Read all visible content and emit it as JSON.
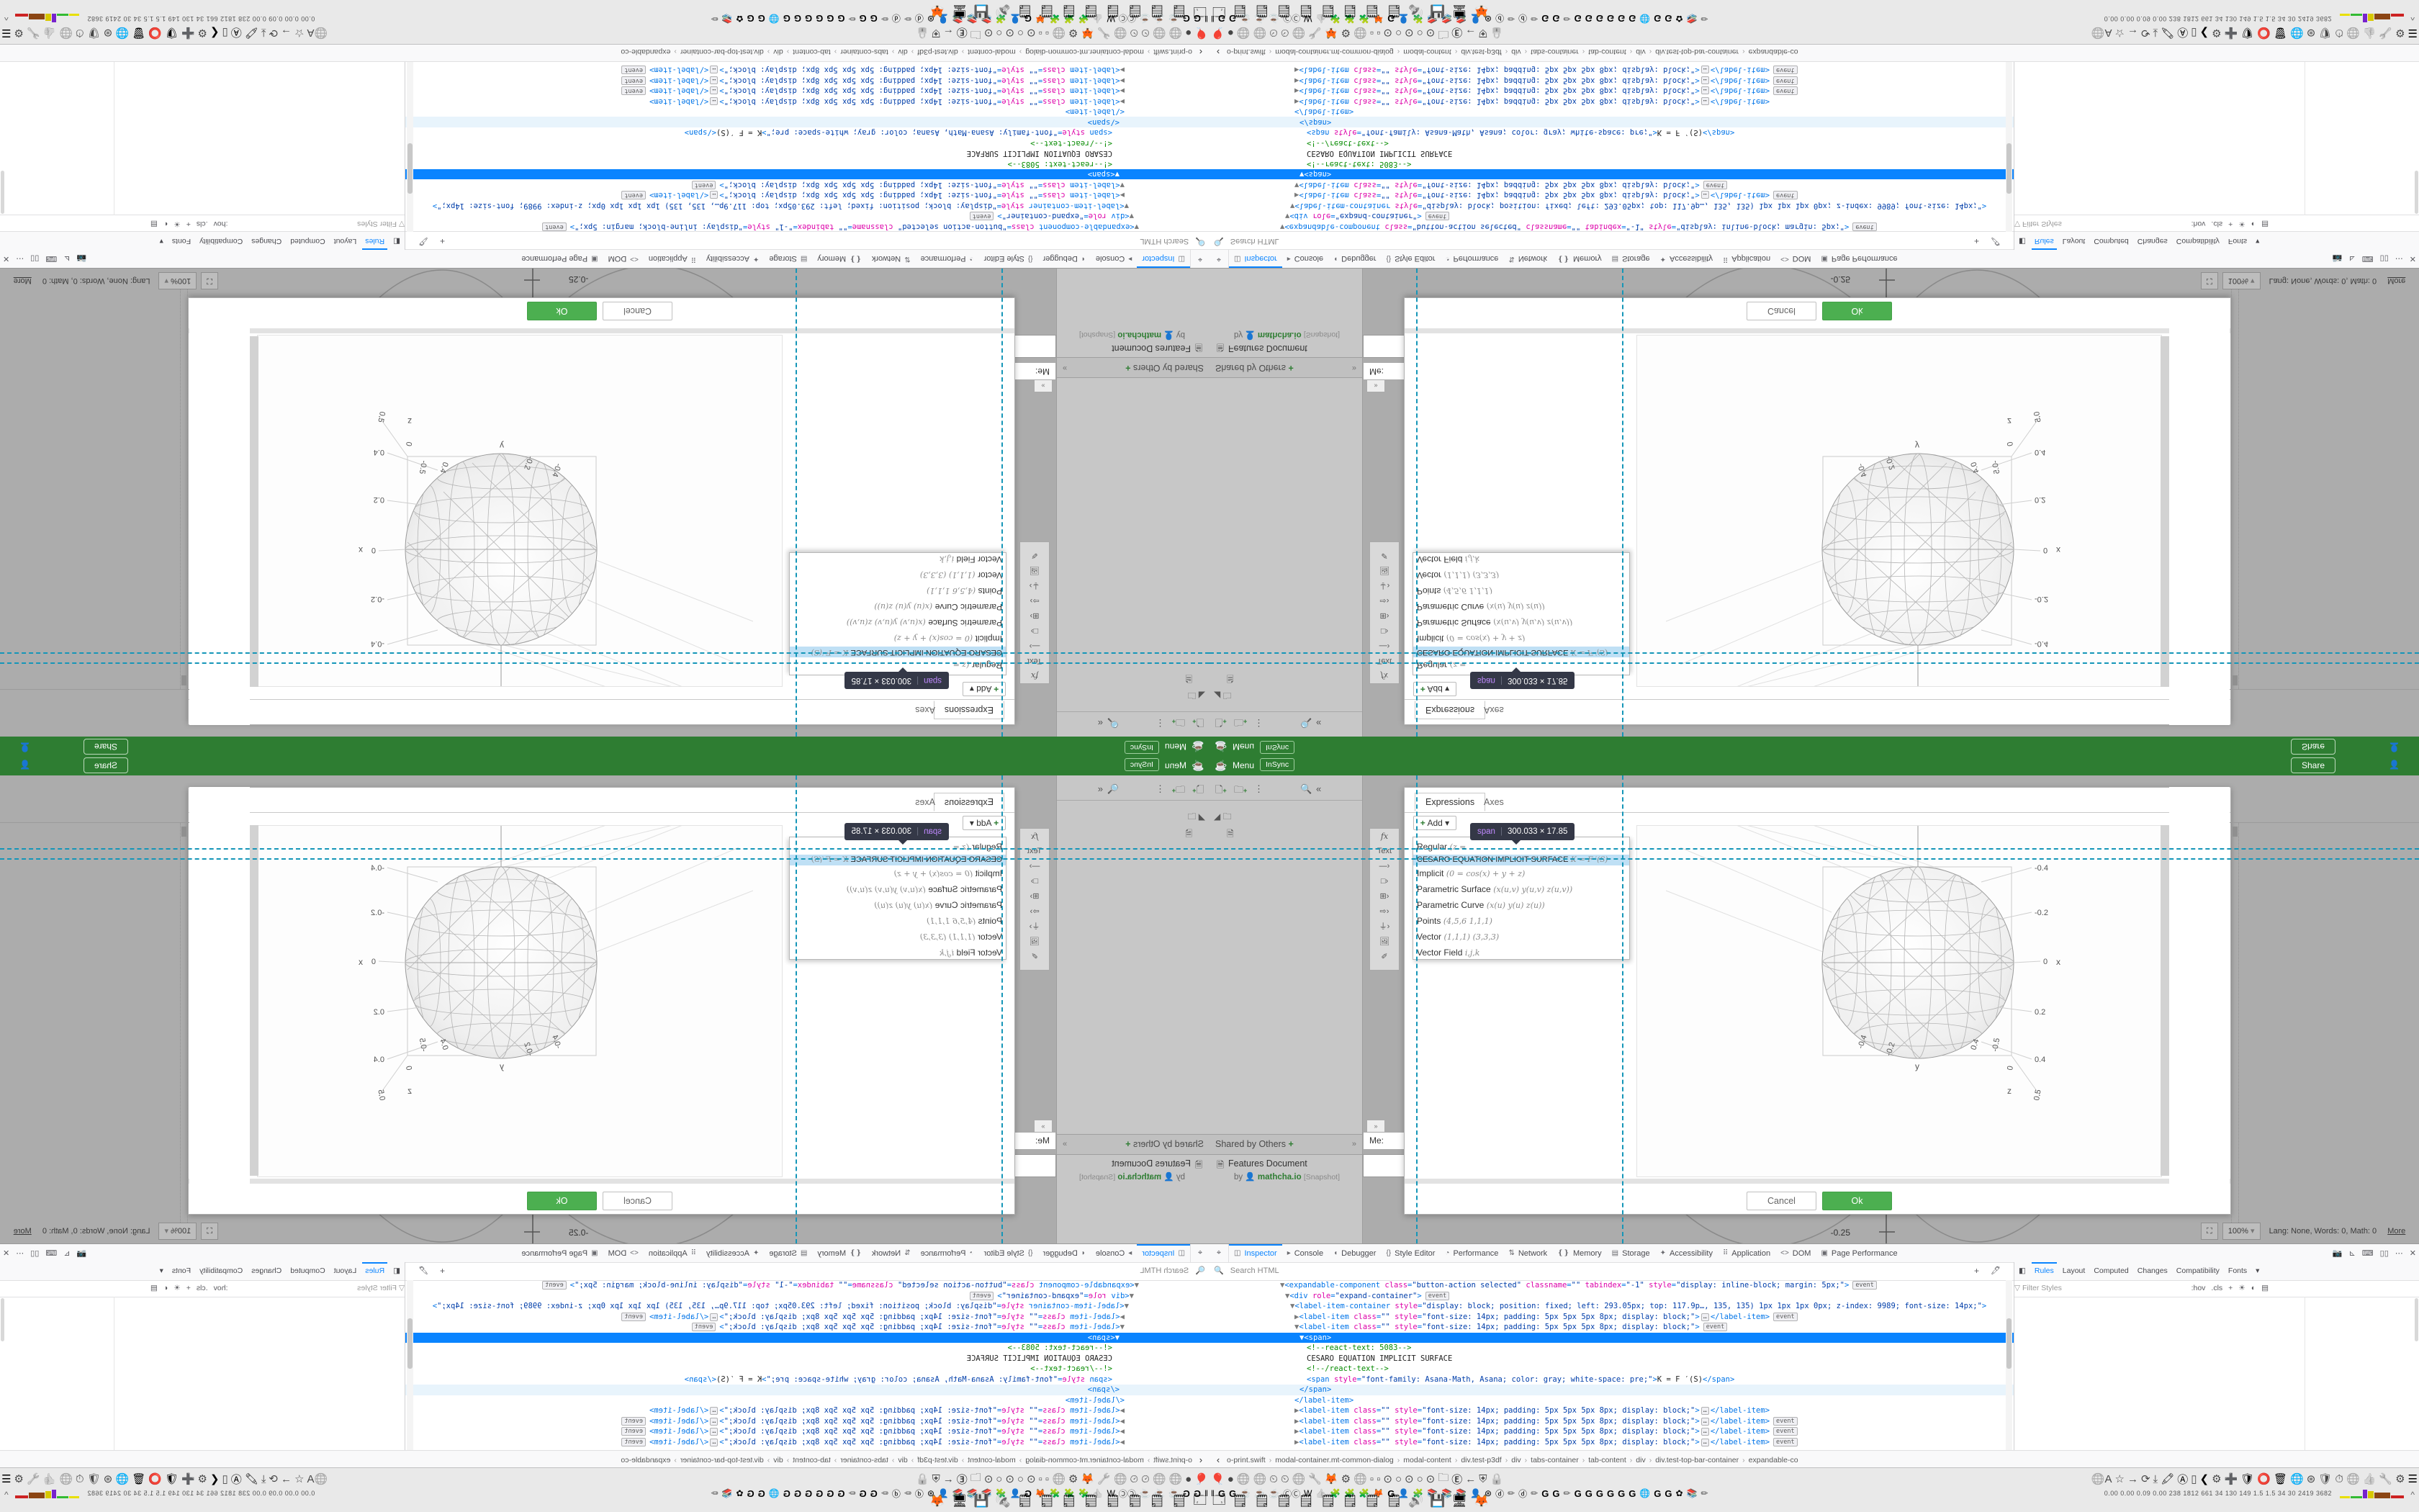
{
  "header": {
    "menu_label": "Menu",
    "insync_label": "InSync",
    "share_label": "Share",
    "logo_icon": "coffee-cup",
    "account_icon": "person"
  },
  "drawer": {
    "new_doc_icon": "new-document",
    "new_folder_icon": "new-folder",
    "more_icon": "kebab",
    "search_icon": "search",
    "collapse_icon": "collapse",
    "shared_header": "Shared by Others",
    "shared_add": "+",
    "shared_collapse": "»",
    "doc_title": "Features Document",
    "doc_by": "by",
    "doc_author": "mathcha.io",
    "doc_badge": "[Snapshot]"
  },
  "vtools": {
    "items": [
      "fx",
      "Text",
      "—›",
      "□›",
      "⊞›",
      "⇨›",
      "⏚›",
      "🖼",
      "✐"
    ]
  },
  "chat": {
    "label": "Me:",
    "collapse": "»"
  },
  "dialog": {
    "tab_expressions": "Expressions",
    "tab_axes": "Axes",
    "add_label": "Add",
    "add_plus": "+",
    "add_caret": "▾",
    "cancel_label": "Cancel",
    "ok_label": "Ok",
    "menu_items": [
      {
        "label": "Regular",
        "hint": "(z ="
      },
      {
        "label": "CESARO EQUATION IMPLICIT SURFACE",
        "hint": "K = F ′(S)",
        "highlighted": true
      },
      {
        "label": "Implicit",
        "hint": "(0 = cos(x) + y + z)"
      },
      {
        "label": "Parametric Surface",
        "hint": "(x(u,v) y(u,v) z(u,v))"
      },
      {
        "label": "Parametric Curve",
        "hint": "(x(u) y(u) z(u))"
      },
      {
        "label": "Points",
        "hint": "(4,5,6 1,1,1)"
      },
      {
        "label": "Vector",
        "hint": "(1,1,1) (3,3,3)"
      },
      {
        "label": "Vector Field",
        "hint": "i,j,k"
      }
    ]
  },
  "tooltip": {
    "tag": "span",
    "size": "300.033 × 17.85"
  },
  "plot": {
    "x_ticks": [
      "-0.4",
      "-0.2",
      "0",
      "0.2",
      "0.4"
    ],
    "x_label": "x",
    "y_ticks": [
      "-0.4",
      "-0.2",
      "0.4"
    ],
    "y_label": "y",
    "z_ticks": [
      "-0.5",
      "0",
      "0.5"
    ],
    "z_label": "z"
  },
  "fragment": {
    "graph_label": "-0.25"
  },
  "statusbar": {
    "fullscreen_icon": "⛶",
    "zoom": "100%",
    "zoom_caret": "▾",
    "stats": "Lang: None, Words: 0, Math: 0",
    "more": "More"
  },
  "devtools": {
    "pick_icon": "pick-element",
    "tabs": [
      {
        "icon": "◫",
        "label": "Inspector",
        "active": true
      },
      {
        "icon": "▸",
        "label": "Console"
      },
      {
        "icon": "◖",
        "label": "Debugger"
      },
      {
        "icon": "{}",
        "label": "Style Editor"
      },
      {
        "icon": "◔",
        "label": "Performance"
      },
      {
        "icon": "⇅",
        "label": "Network"
      },
      {
        "icon": "❴❵",
        "label": "Memory"
      },
      {
        "icon": "▤",
        "label": "Storage"
      },
      {
        "icon": "✦",
        "label": "Accessibility"
      },
      {
        "icon": "⠿",
        "label": "Application"
      },
      {
        "icon": "<>",
        "label": "DOM"
      },
      {
        "icon": "▣",
        "label": "Page Performance"
      }
    ],
    "right_icons": [
      "📷",
      "⊾",
      "⌨",
      "▯▯",
      "⋯",
      "✕"
    ],
    "search_placeholder": "Search HTML",
    "search_icon": "search",
    "add_node_icon": "+",
    "eyedropper_icon": "🖊",
    "sidebar_tabs": [
      {
        "icon": "◧",
        "label": ""
      },
      {
        "label": "Rules",
        "active": true
      },
      {
        "label": "Layout"
      },
      {
        "label": "Computed"
      },
      {
        "label": "Changes"
      },
      {
        "label": "Compatibility"
      },
      {
        "label": "Fonts"
      },
      {
        "label": "▾"
      }
    ],
    "filter_placeholder": "Filter Styles",
    "filter_icon": "funnel",
    "filter_icons": [
      ":hov",
      ".cls",
      "+",
      "☀",
      "◐",
      "▤"
    ],
    "markup_lines": [
      {
        "indent": 98,
        "tokens": [
          [
            "a",
            "▼"
          ],
          [
            "p",
            "<"
          ],
          [
            "t",
            "expandable-component"
          ],
          [
            "n",
            " class"
          ],
          [
            "p",
            "="
          ],
          [
            "v",
            "\"button-action selected\""
          ],
          [
            "n",
            " classname"
          ],
          [
            "p",
            "="
          ],
          [
            "v",
            "\"\""
          ],
          [
            "n",
            " tabindex"
          ],
          [
            "p",
            "="
          ],
          [
            "v",
            "\"-1\""
          ],
          [
            "n",
            " style"
          ],
          [
            "p",
            "="
          ],
          [
            "v",
            "\"display: inline-block; margin: 5px;\""
          ],
          [
            "p",
            ">"
          ],
          [
            "b",
            "event"
          ]
        ]
      },
      {
        "indent": 105,
        "tokens": [
          [
            "a",
            "▼"
          ],
          [
            "p",
            "<"
          ],
          [
            "t",
            "div"
          ],
          [
            "n",
            " role"
          ],
          [
            "p",
            "="
          ],
          [
            "v",
            "\"expand-container\""
          ],
          [
            "p",
            ">"
          ],
          [
            "b",
            "event"
          ]
        ]
      },
      {
        "indent": 112,
        "tokens": [
          [
            "a",
            "▼"
          ],
          [
            "p",
            "<"
          ],
          [
            "t",
            "label-item-container"
          ],
          [
            "n",
            " style"
          ],
          [
            "p",
            "="
          ],
          [
            "v",
            "\"display: block; position: fixed; left: 293.05px; top: 117.9p…, 135, 135) 1px 1px 1px 0px; z-index: 9989; font-size: 14px;\""
          ],
          [
            "p",
            ">"
          ]
        ]
      },
      {
        "indent": 118,
        "tokens": [
          [
            "a",
            "▶"
          ],
          [
            "p",
            "<"
          ],
          [
            "t",
            "label-item"
          ],
          [
            "n",
            " class"
          ],
          [
            "p",
            "="
          ],
          [
            "v",
            "\"\""
          ],
          [
            "n",
            " style"
          ],
          [
            "p",
            "="
          ],
          [
            "v",
            "\"font-size: 14px; padding: 5px 5px 5px 8px; display: block;\""
          ],
          [
            "p",
            ">"
          ],
          [
            "e",
            "…"
          ],
          [
            "p",
            "</"
          ],
          [
            "t",
            "label-item"
          ],
          [
            "p",
            ">"
          ],
          [
            "b",
            "event"
          ]
        ]
      },
      {
        "indent": 118,
        "tokens": [
          [
            "a",
            "▼"
          ],
          [
            "p",
            "<"
          ],
          [
            "t",
            "label-item"
          ],
          [
            "n",
            " class"
          ],
          [
            "p",
            "="
          ],
          [
            "v",
            "\"\""
          ],
          [
            "n",
            " style"
          ],
          [
            "p",
            "="
          ],
          [
            "v",
            "\"font-size: 14px; padding: 5px 5px 5px 8px; display: block;\""
          ],
          [
            "p",
            ">"
          ],
          [
            "b",
            "event"
          ]
        ]
      },
      {
        "indent": 125,
        "selected": true,
        "tokens": [
          [
            "w",
            "▼"
          ],
          [
            "w",
            "<span>"
          ]
        ]
      },
      {
        "indent": 135,
        "tokens": [
          [
            "c",
            "<!--react-text: 5083-->"
          ]
        ]
      },
      {
        "indent": 135,
        "tokens": [
          [
            "x",
            "CESARO EQUATION IMPLICIT SURFACE"
          ]
        ]
      },
      {
        "indent": 135,
        "tokens": [
          [
            "c",
            "<!--/react-text-->"
          ]
        ]
      },
      {
        "indent": 135,
        "tokens": [
          [
            "p",
            "<"
          ],
          [
            "t",
            "span"
          ],
          [
            "n",
            " style"
          ],
          [
            "p",
            "="
          ],
          [
            "v",
            "\"font-family: Asana-Math, Asana; color: gray; white-space: pre;\""
          ],
          [
            "p",
            ">"
          ],
          [
            "x",
            "K = F ′(S)"
          ],
          [
            "p",
            "</"
          ],
          [
            "t",
            "span"
          ],
          [
            "p",
            ">"
          ]
        ]
      },
      {
        "indent": 125,
        "hover": true,
        "tokens": [
          [
            "p",
            "</"
          ],
          [
            "t",
            "span"
          ],
          [
            "p",
            ">"
          ]
        ]
      },
      {
        "indent": 118,
        "tokens": [
          [
            "p",
            "</"
          ],
          [
            "t",
            "label-item"
          ],
          [
            "p",
            ">"
          ]
        ]
      },
      {
        "indent": 118,
        "tokens": [
          [
            "a",
            "▶"
          ],
          [
            "p",
            "<"
          ],
          [
            "t",
            "label-item"
          ],
          [
            "n",
            " class"
          ],
          [
            "p",
            "="
          ],
          [
            "v",
            "\"\""
          ],
          [
            "n",
            " style"
          ],
          [
            "p",
            "="
          ],
          [
            "v",
            "\"font-size: 14px; padding: 5px 5px 5px 8px; display: block;\""
          ],
          [
            "p",
            ">"
          ],
          [
            "e",
            "…"
          ],
          [
            "p",
            "</"
          ],
          [
            "t",
            "label-item"
          ],
          [
            "p",
            ">"
          ]
        ]
      },
      {
        "indent": 118,
        "tokens": [
          [
            "a",
            "▶"
          ],
          [
            "p",
            "<"
          ],
          [
            "t",
            "label-item"
          ],
          [
            "n",
            " class"
          ],
          [
            "p",
            "="
          ],
          [
            "v",
            "\"\""
          ],
          [
            "n",
            " style"
          ],
          [
            "p",
            "="
          ],
          [
            "v",
            "\"font-size: 14px; padding: 5px 5px 5px 8px; display: block;\""
          ],
          [
            "p",
            ">"
          ],
          [
            "e",
            "…"
          ],
          [
            "p",
            "</"
          ],
          [
            "t",
            "label-item"
          ],
          [
            "p",
            ">"
          ],
          [
            "b",
            "event"
          ]
        ]
      },
      {
        "indent": 118,
        "tokens": [
          [
            "a",
            "▶"
          ],
          [
            "p",
            "<"
          ],
          [
            "t",
            "label-item"
          ],
          [
            "n",
            " class"
          ],
          [
            "p",
            "="
          ],
          [
            "v",
            "\"\""
          ],
          [
            "n",
            " style"
          ],
          [
            "p",
            "="
          ],
          [
            "v",
            "\"font-size: 14px; padding: 5px 5px 5px 8px; display: block;\""
          ],
          [
            "p",
            ">"
          ],
          [
            "e",
            "…"
          ],
          [
            "p",
            "</"
          ],
          [
            "t",
            "label-item"
          ],
          [
            "p",
            ">"
          ],
          [
            "b",
            "event"
          ]
        ]
      },
      {
        "indent": 118,
        "tokens": [
          [
            "a",
            "▶"
          ],
          [
            "p",
            "<"
          ],
          [
            "t",
            "label-item"
          ],
          [
            "n",
            " class"
          ],
          [
            "p",
            "="
          ],
          [
            "v",
            "\"\""
          ],
          [
            "n",
            " style"
          ],
          [
            "p",
            "="
          ],
          [
            "v",
            "\"font-size: 14px; padding: 5px 5px 5px 8px; display: block;\""
          ],
          [
            "p",
            ">"
          ],
          [
            "e",
            "…"
          ],
          [
            "p",
            "</"
          ],
          [
            "t",
            "label-item"
          ],
          [
            "p",
            ">"
          ],
          [
            "b",
            "event"
          ]
        ]
      }
    ],
    "breadcrumbs": [
      "o-print.swift",
      "modal-container.mt-common-dialog",
      "modal-content",
      "div.test-p3df",
      "div",
      "tabs-container",
      "tab-content",
      "div",
      "div.test-top-bar-container",
      "expandable-co"
    ]
  },
  "taskbar": {
    "row1_left": [
      [
        "🎈",
        ""
      ],
      [
        "●",
        "ig"
      ],
      [
        "🌐",
        "ig"
      ],
      [
        "🌐",
        "ig"
      ],
      [
        "⏲",
        "ig"
      ],
      [
        "⏲",
        "ig"
      ],
      [
        "🌐",
        "ig"
      ],
      [
        "🔧",
        "ig"
      ],
      [
        "🦊",
        ""
      ],
      [
        "⚙",
        "ig"
      ],
      [
        "🌐",
        "ig"
      ],
      [
        "▫",
        "ig"
      ],
      [
        "▫",
        "ig"
      ],
      [
        "⊙",
        "ig"
      ],
      [
        "○",
        "ig"
      ],
      [
        "⊙",
        "ig"
      ],
      [
        "○",
        "ig"
      ],
      [
        "⊙",
        "ig"
      ],
      [
        "🗀",
        "ig"
      ],
      [
        "Ⓔ",
        ""
      ],
      [
        "←",
        "ig"
      ],
      [
        "⛨",
        "ig"
      ],
      [
        "🔒",
        "ig"
      ]
    ],
    "row1_right": [
      [
        "🌐A",
        "ig"
      ],
      [
        "☆",
        "ig"
      ],
      [
        "→",
        "ig"
      ],
      [
        "⟳",
        "ig"
      ],
      [
        "⤓",
        "ig"
      ],
      [
        "🖍",
        ""
      ],
      [
        "Ⓐ",
        ""
      ],
      [
        "▯",
        "ig"
      ],
      [
        "❮",
        ""
      ],
      [
        "⚙",
        "ig"
      ],
      [
        "➕",
        ""
      ],
      [
        "🛡",
        ""
      ],
      [
        "⭕",
        ""
      ],
      [
        "🗑",
        ""
      ],
      [
        "🌐",
        ""
      ],
      [
        "⊛",
        "ig"
      ],
      [
        "🛡",
        "ig"
      ],
      [
        "⏱",
        "ig"
      ],
      [
        "🌐",
        "ig"
      ],
      [
        "👍",
        "ig"
      ],
      [
        "🔧",
        "ig"
      ],
      [
        "⚙",
        "ig"
      ],
      [
        "☰",
        ""
      ]
    ],
    "row2": [
      [
        "‖",
        ""
      ],
      [
        "G",
        "gG"
      ],
      [
        "G",
        "gG"
      ],
      [
        "☕",
        ""
      ],
      [
        "☕",
        ""
      ],
      [
        "☕",
        ""
      ],
      [
        "ⒸⒸ",
        "ig"
      ],
      [
        "W",
        ""
      ],
      [
        "👍",
        "ig"
      ],
      [
        "🧩",
        ""
      ],
      [
        "🧩",
        ""
      ],
      [
        "🧩",
        ""
      ],
      [
        "🦊",
        ""
      ],
      [
        "G",
        "gG"
      ],
      [
        "👤",
        ""
      ],
      [
        "🧩",
        ""
      ],
      [
        "📚",
        ""
      ],
      [
        "📚",
        ""
      ],
      [
        "📚",
        ""
      ],
      [
        "👤",
        ""
      ],
      [
        "⊛",
        ""
      ],
      [
        "ⓓ",
        ""
      ],
      [
        "✏",
        "ig"
      ],
      [
        "ⓓ",
        ""
      ],
      [
        "✏",
        "ig"
      ],
      [
        "G",
        "gG"
      ],
      [
        "G",
        "gG"
      ],
      [
        "✏",
        "ig"
      ],
      [
        "G",
        "gG"
      ],
      [
        "G",
        "gG"
      ],
      [
        "G",
        "gG"
      ],
      [
        "G",
        "gG"
      ],
      [
        "G",
        "gG"
      ],
      [
        "G",
        "gG"
      ],
      [
        "🌐",
        ""
      ],
      [
        "G",
        "gG"
      ],
      [
        "G",
        "gG"
      ],
      [
        "✿",
        ""
      ],
      [
        "📚",
        ""
      ],
      [
        "✏",
        "ig"
      ]
    ],
    "row3": [
      [
        "🗔",
        ""
      ],
      [
        "🗒",
        ""
      ],
      [
        "🗒",
        ""
      ],
      [
        "🗒",
        ""
      ],
      [
        "🗒",
        ""
      ],
      [
        "🗒",
        ""
      ],
      [
        "🗒",
        ""
      ],
      [
        "🗒",
        ""
      ],
      [
        "🗒",
        ""
      ],
      [
        "🔊",
        "ig"
      ],
      [
        "💾",
        ""
      ],
      [
        "🖥",
        ""
      ],
      [
        "🦊",
        ""
      ]
    ],
    "stats": "0.00 0.00 0.09 0.00  238 1812 661  34  130  149  1.5  1.5  34  30  2419 3682",
    "chevron": "^"
  }
}
